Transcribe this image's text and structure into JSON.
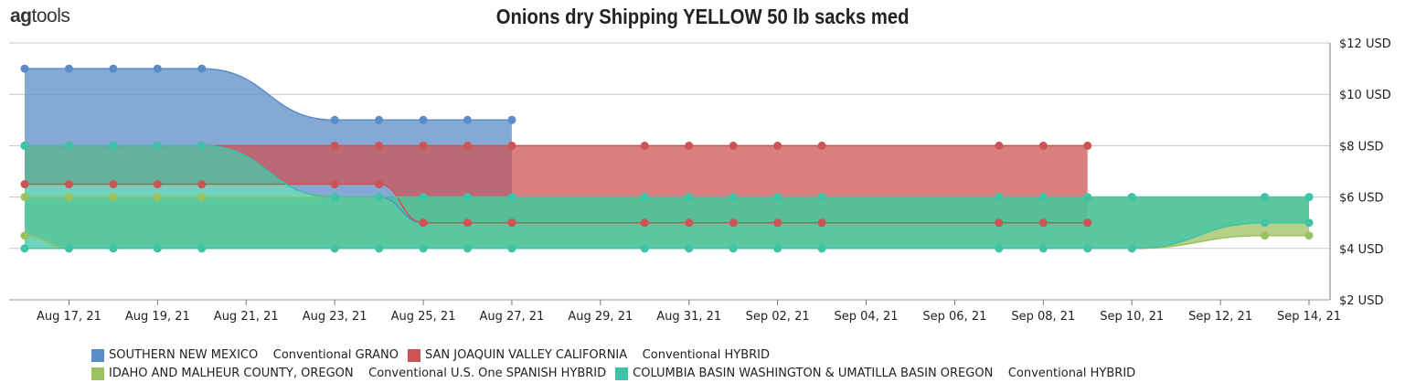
{
  "header": {
    "logo_bold": "ag",
    "logo_rest": "tools",
    "title": "Onions dry Shipping YELLOW 50 lb sacks med"
  },
  "chart_data": {
    "type": "area",
    "title": "Onions dry Shipping YELLOW 50 lb sacks med",
    "xlabel": "",
    "ylabel": "",
    "ylim": [
      2,
      12
    ],
    "y_ticks": [
      {
        "value": 12,
        "label": "$12 USD"
      },
      {
        "value": 10,
        "label": "$10 USD"
      },
      {
        "value": 8,
        "label": "$8 USD"
      },
      {
        "value": 6,
        "label": "$6 USD"
      },
      {
        "value": 4,
        "label": "$4 USD"
      },
      {
        "value": 2,
        "label": "$2 USD"
      }
    ],
    "x_ticks": [
      "Aug 17, 21",
      "Aug 19, 21",
      "Aug 21, 21",
      "Aug 23, 21",
      "Aug 25, 21",
      "Aug 27, 21",
      "Aug 29, 21",
      "Aug 31, 21",
      "Sep 02, 21",
      "Sep 04, 21",
      "Sep 06, 21",
      "Sep 08, 21",
      "Sep 10, 21",
      "Sep 12, 21",
      "Sep 14, 21"
    ],
    "grid": true,
    "legend_position": "bottom",
    "series": [
      {
        "name": "SOUTHERN NEW MEXICO    Conventional GRANO",
        "color": "#5b8cc7",
        "x": [
          "Aug 16, 21",
          "Aug 17, 21",
          "Aug 18, 21",
          "Aug 19, 21",
          "Aug 20, 21",
          "Aug 23, 21",
          "Aug 24, 21",
          "Aug 25, 21",
          "Aug 26, 21",
          "Aug 27, 21"
        ],
        "high": [
          11,
          11,
          11,
          11,
          11,
          9,
          9,
          9,
          9,
          9
        ],
        "low": [
          8,
          8,
          8,
          8,
          8,
          6,
          6,
          5,
          5,
          5
        ]
      },
      {
        "name": "SAN JOAQUIN VALLEY CALIFORNIA    Conventional HYBRID",
        "color": "#cd5454",
        "x": [
          "Aug 16, 21",
          "Aug 17, 21",
          "Aug 18, 21",
          "Aug 19, 21",
          "Aug 20, 21",
          "Aug 23, 21",
          "Aug 24, 21",
          "Aug 25, 21",
          "Aug 26, 21",
          "Aug 27, 21",
          "Aug 30, 21",
          "Aug 31, 21",
          "Sep 01, 21",
          "Sep 02, 21",
          "Sep 03, 21",
          "Sep 07, 21",
          "Sep 08, 21",
          "Sep 09, 21"
        ],
        "high": [
          8,
          8,
          8,
          8,
          8,
          8,
          8,
          8,
          8,
          8,
          8,
          8,
          8,
          8,
          8,
          8,
          8,
          8
        ],
        "low": [
          6.5,
          6.5,
          6.5,
          6.5,
          6.5,
          6.5,
          6.5,
          5,
          5,
          5,
          5,
          5,
          5,
          5,
          5,
          5,
          5,
          5
        ]
      },
      {
        "name": "IDAHO AND MALHEUR COUNTY, OREGON    Conventional U.S. One SPANISH HYBRID",
        "color": "#9cc15f",
        "x": [
          "Aug 16, 21",
          "Aug 17, 21",
          "Aug 18, 21",
          "Aug 19, 21",
          "Aug 20, 21",
          "Aug 23, 21",
          "Aug 24, 21",
          "Aug 25, 21",
          "Aug 26, 21",
          "Aug 27, 21",
          "Aug 30, 21",
          "Aug 31, 21",
          "Sep 01, 21",
          "Sep 02, 21",
          "Sep 03, 21",
          "Sep 07, 21",
          "Sep 08, 21",
          "Sep 09, 21",
          "Sep 10, 21",
          "Sep 13, 21",
          "Sep 14, 21"
        ],
        "high": [
          6,
          6,
          6,
          6,
          6,
          6,
          6,
          6,
          6,
          6,
          6,
          6,
          6,
          6,
          6,
          6,
          6,
          6,
          6,
          6,
          6
        ],
        "low": [
          4.5,
          4,
          4,
          4,
          4,
          4,
          4,
          4,
          4,
          4,
          4,
          4,
          4,
          4,
          4,
          4,
          4,
          4,
          4,
          4.5,
          4.5
        ]
      },
      {
        "name": "COLUMBIA BASIN WASHINGTON & UMATILLA BASIN OREGON    Conventional HYBRID",
        "color": "#3ec3a6",
        "x": [
          "Aug 16, 21",
          "Aug 17, 21",
          "Aug 18, 21",
          "Aug 19, 21",
          "Aug 20, 21",
          "Aug 23, 21",
          "Aug 24, 21",
          "Aug 25, 21",
          "Aug 26, 21",
          "Aug 27, 21",
          "Aug 30, 21",
          "Aug 31, 21",
          "Sep 01, 21",
          "Sep 02, 21",
          "Sep 03, 21",
          "Sep 07, 21",
          "Sep 08, 21",
          "Sep 09, 21",
          "Sep 10, 21",
          "Sep 13, 21",
          "Sep 14, 21"
        ],
        "high": [
          8,
          8,
          8,
          8,
          8,
          6,
          6,
          6,
          6,
          6,
          6,
          6,
          6,
          6,
          6,
          6,
          6,
          6,
          6,
          6,
          6
        ],
        "low": [
          4,
          4,
          4,
          4,
          4,
          4,
          4,
          4,
          4,
          4,
          4,
          4,
          4,
          4,
          4,
          4,
          4,
          4,
          4,
          5,
          5
        ]
      }
    ]
  },
  "legend": {
    "row1": [
      {
        "label": "SOUTHERN NEW MEXICO    Conventional GRANO",
        "color": "#5b8cc7"
      },
      {
        "label": "SAN JOAQUIN VALLEY CALIFORNIA    Conventional HYBRID",
        "color": "#cd5454"
      }
    ],
    "row2": [
      {
        "label": "IDAHO AND MALHEUR COUNTY, OREGON    Conventional U.S. One SPANISH HYBRID",
        "color": "#9cc15f"
      },
      {
        "label": "COLUMBIA BASIN WASHINGTON & UMATILLA BASIN OREGON    Conventional HYBRID",
        "color": "#3ec3a6"
      }
    ]
  }
}
